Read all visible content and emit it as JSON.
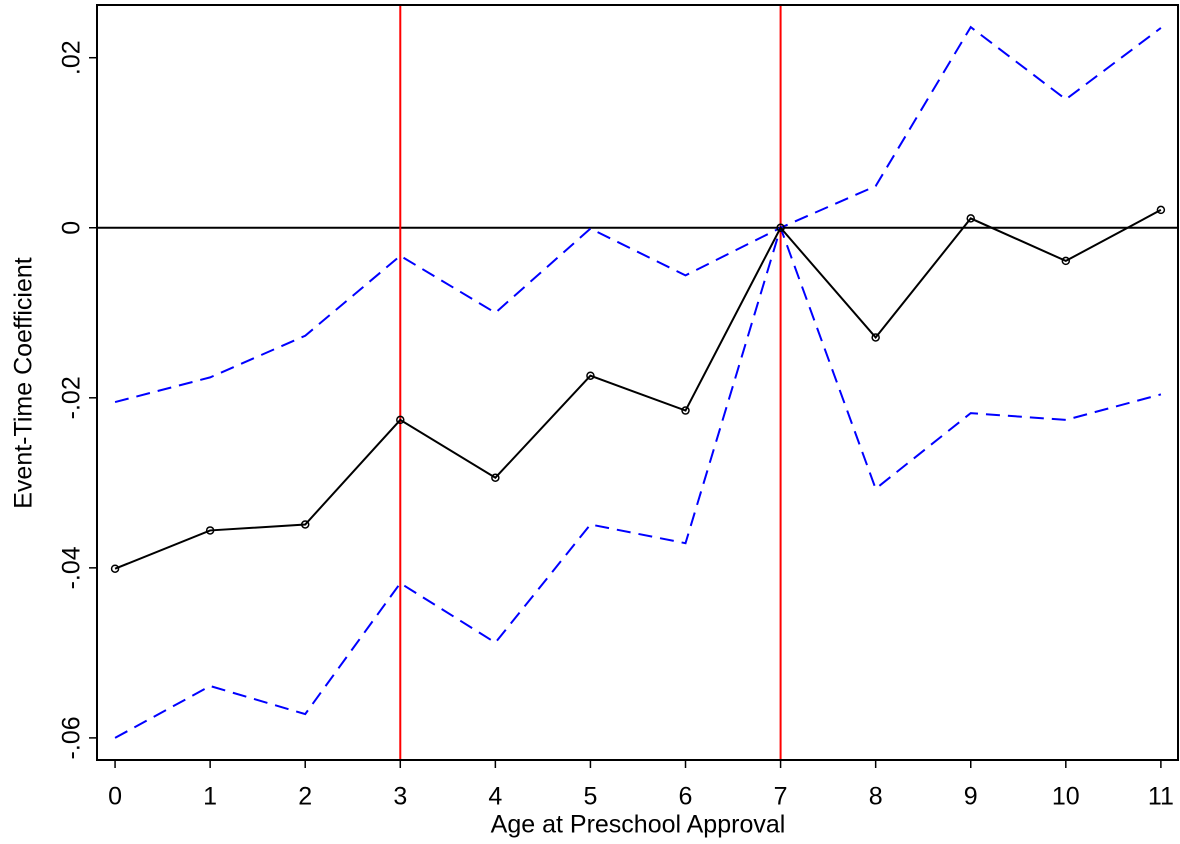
{
  "chart_data": {
    "type": "line",
    "xlabel": "Age at Preschool Approval",
    "ylabel": "Event-Time Coefficient",
    "x": [
      0,
      1,
      2,
      3,
      4,
      5,
      6,
      7,
      8,
      9,
      10,
      11
    ],
    "series": [
      {
        "color": "#0000ff",
        "dash": true,
        "markers": false,
        "values": [
          -0.0205,
          -0.0176,
          -0.0127,
          -0.0033,
          -0.01,
          -0.0001,
          -0.0056,
          0,
          0.0049,
          0.0236,
          0.0151,
          0.0235
        ]
      },
      {
        "color": "#0000ff",
        "dash": true,
        "markers": false,
        "values": [
          -0.06,
          -0.0539,
          -0.0572,
          -0.0418,
          -0.0488,
          -0.0349,
          -0.0371,
          0,
          -0.0307,
          -0.0218,
          -0.0226,
          -0.0196
        ]
      },
      {
        "color": "#000000",
        "dash": false,
        "markers": true,
        "values": [
          -0.0401,
          -0.0356,
          -0.0349,
          -0.0226,
          -0.0294,
          -0.0174,
          -0.0215,
          0,
          -0.0129,
          0.0011,
          -0.0039,
          0.0021
        ]
      }
    ],
    "xlim": [
      -0.19,
      11.18
    ],
    "ylim": [
      -0.0626,
      0.0262
    ],
    "xticks": [
      0,
      1,
      2,
      3,
      4,
      5,
      6,
      7,
      8,
      9,
      10,
      11
    ],
    "yticks": [
      {
        "value": -0.06,
        "label": "-.06"
      },
      {
        "value": -0.04,
        "label": "-.04"
      },
      {
        "value": -0.02,
        "label": "-.02"
      },
      0,
      {
        "value": 0.02,
        "label": ".02"
      }
    ],
    "vlines": [
      3,
      7
    ],
    "vline_color": "#ff0000",
    "hline": 0,
    "hline_color": "#000000"
  }
}
